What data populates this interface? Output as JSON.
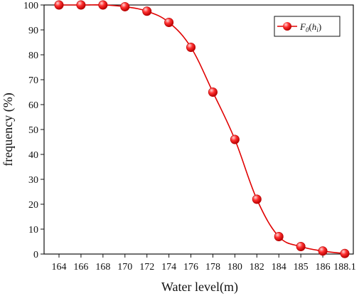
{
  "chart_data": {
    "type": "line",
    "title": "",
    "xlabel": "Water level(m)",
    "ylabel": "frequency (%)",
    "categories": [
      "164",
      "166",
      "168",
      "170",
      "172",
      "174",
      "176",
      "178",
      "180",
      "182",
      "184",
      "185",
      "186",
      "188.1"
    ],
    "ylim": [
      0,
      100
    ],
    "yticks": [
      0,
      10,
      20,
      30,
      40,
      50,
      60,
      70,
      80,
      90,
      100
    ],
    "grid": false,
    "legend_position": "top-right",
    "series": [
      {
        "name": "F0(hi)",
        "legend_text": {
          "main": "F",
          "sub0": "0",
          "paren_open": "(",
          "h": "h",
          "sub_i": "i",
          "paren_close": ")"
        },
        "values": [
          100,
          100,
          100,
          99.3,
          97.5,
          93,
          83,
          65,
          46,
          22,
          7,
          3,
          1.2,
          0.2
        ],
        "color": "#e00000",
        "marker": "sphere"
      }
    ]
  },
  "colors": {
    "line": "#e00000",
    "marker_dark": "#b80000",
    "marker_mid": "#ff3030",
    "marker_highlight": "#ffd6d6",
    "axis": "#111111"
  }
}
